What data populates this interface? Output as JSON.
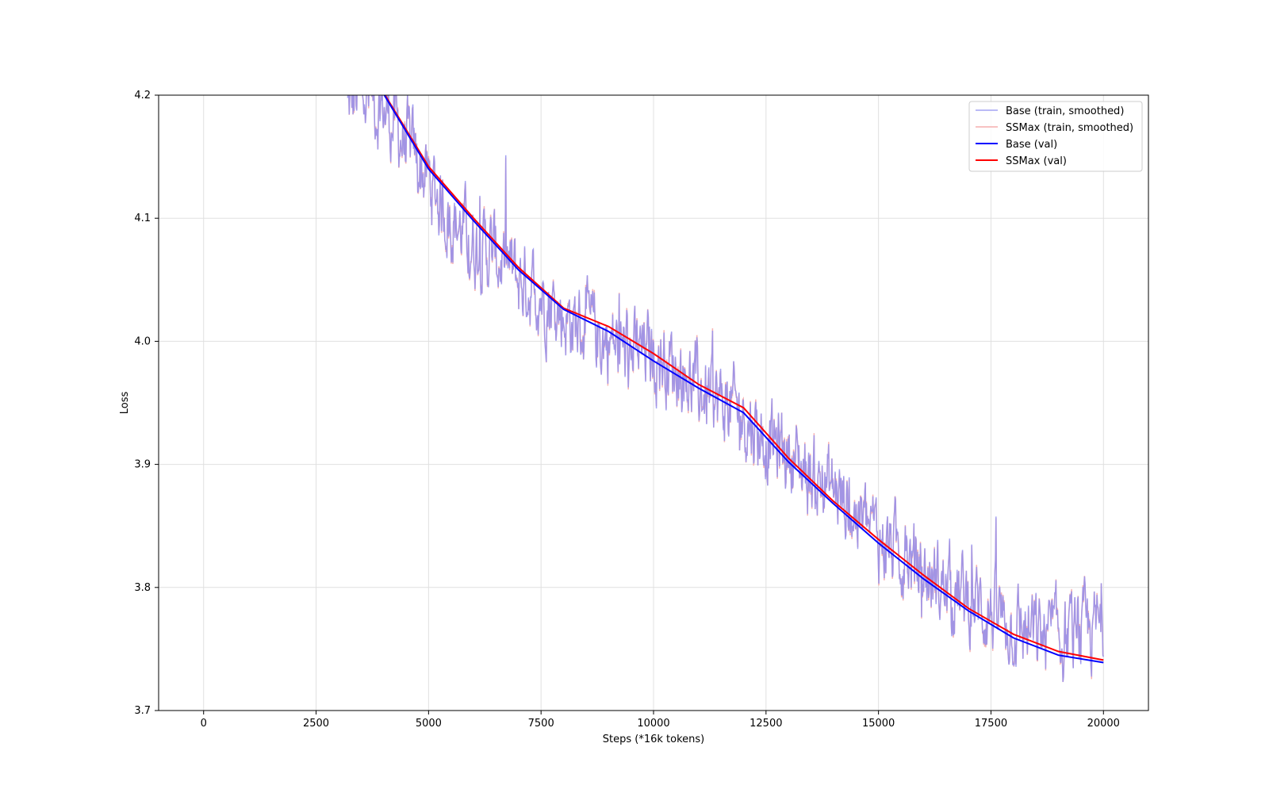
{
  "chart_data": {
    "type": "line",
    "title": "",
    "xlabel": "Steps (*16k tokens)",
    "ylabel": "Loss",
    "xlim": [
      -1000,
      21000
    ],
    "ylim": [
      3.7,
      4.2
    ],
    "x_ticks": [
      0,
      2500,
      5000,
      7500,
      10000,
      12500,
      15000,
      17500,
      20000
    ],
    "x_tick_labels": [
      "0",
      "2500",
      "5000",
      "7500",
      "10000",
      "12500",
      "15000",
      "17500",
      "20000"
    ],
    "y_ticks": [
      3.7,
      3.8,
      3.9,
      4.0,
      4.1,
      4.2
    ],
    "y_tick_labels": [
      "3.7",
      "3.8",
      "3.9",
      "4.0",
      "4.1",
      "4.2"
    ],
    "grid": true,
    "legend_position": "top-right",
    "series": [
      {
        "name": "Base (train, smoothed)",
        "color": "#8c8cf0",
        "style": "noisy",
        "x": [
          3200,
          3500,
          4000,
          4500,
          5000,
          5500,
          6000,
          6500,
          7000,
          7500,
          8000,
          8500,
          9000,
          9500,
          10000,
          10500,
          11000,
          11500,
          12000,
          12500,
          13000,
          13500,
          14000,
          14500,
          15000,
          15500,
          16000,
          16500,
          17000,
          17500,
          18000,
          18500,
          19000,
          19500,
          20000
        ],
        "y": [
          4.19,
          4.2,
          4.19,
          4.16,
          4.13,
          4.1,
          4.08,
          4.07,
          4.05,
          4.04,
          4.02,
          4.01,
          4.0,
          3.99,
          3.99,
          3.98,
          3.96,
          3.95,
          3.94,
          3.92,
          3.91,
          3.89,
          3.88,
          3.86,
          3.84,
          3.83,
          3.81,
          3.8,
          3.79,
          3.78,
          3.77,
          3.76,
          3.76,
          3.76,
          3.77
        ]
      },
      {
        "name": "SSMax (train, smoothed)",
        "color": "#f49a9a",
        "style": "noisy",
        "x": [
          3200,
          3500,
          4000,
          4500,
          5000,
          5500,
          6000,
          6500,
          7000,
          7500,
          8000,
          8500,
          9000,
          9500,
          10000,
          10500,
          11000,
          11500,
          12000,
          12500,
          13000,
          13500,
          14000,
          14500,
          15000,
          15500,
          16000,
          16500,
          17000,
          17500,
          18000,
          18500,
          19000,
          19500,
          20000
        ],
        "y": [
          4.19,
          4.2,
          4.19,
          4.16,
          4.13,
          4.1,
          4.08,
          4.07,
          4.05,
          4.04,
          4.02,
          4.01,
          4.0,
          3.99,
          3.99,
          3.98,
          3.96,
          3.95,
          3.94,
          3.92,
          3.91,
          3.89,
          3.88,
          3.86,
          3.84,
          3.83,
          3.81,
          3.8,
          3.79,
          3.78,
          3.77,
          3.76,
          3.76,
          3.76,
          3.77
        ]
      },
      {
        "name": "Base (val)",
        "color": "#0000ff",
        "style": "solid",
        "x": [
          4000,
          5000,
          6000,
          7000,
          8000,
          9000,
          10000,
          11000,
          12000,
          13000,
          14000,
          15000,
          16000,
          17000,
          18000,
          19000,
          20000
        ],
        "y": [
          4.201,
          4.14,
          4.098,
          4.058,
          4.026,
          4.008,
          3.984,
          3.962,
          3.942,
          3.902,
          3.868,
          3.836,
          3.807,
          3.781,
          3.759,
          3.745,
          3.739
        ]
      },
      {
        "name": "SSMax (val)",
        "color": "#ff0000",
        "style": "solid",
        "x": [
          4000,
          5000,
          6000,
          7000,
          8000,
          9000,
          10000,
          11000,
          12000,
          13000,
          14000,
          15000,
          16000,
          17000,
          18000,
          19000,
          20000
        ],
        "y": [
          4.202,
          4.142,
          4.1,
          4.06,
          4.027,
          4.012,
          3.99,
          3.965,
          3.946,
          3.905,
          3.87,
          3.839,
          3.81,
          3.783,
          3.762,
          3.748,
          3.741
        ]
      }
    ]
  }
}
